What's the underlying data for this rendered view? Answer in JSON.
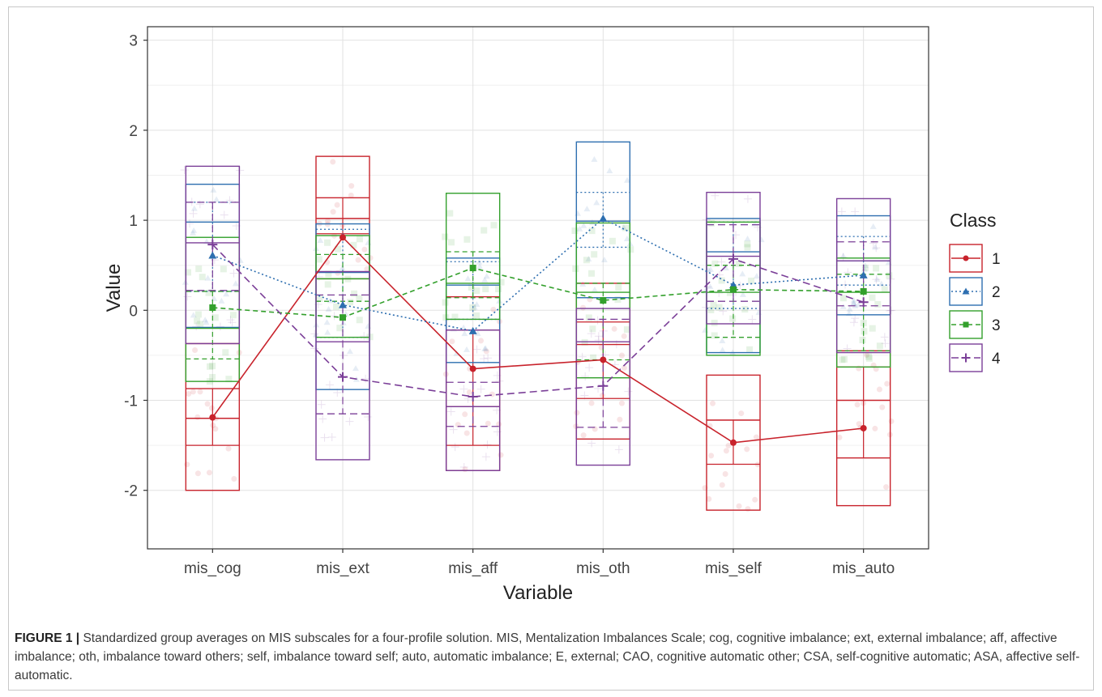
{
  "chart_data": {
    "type": "line",
    "title": "",
    "xlabel": "Variable",
    "ylabel": "Value",
    "categories": [
      "mis_cog",
      "mis_ext",
      "mis_aff",
      "mis_oth",
      "mis_self",
      "mis_auto"
    ],
    "ylim": [
      -2.65,
      3.15
    ],
    "y_ticks": [
      -2,
      -1,
      0,
      1,
      2,
      3
    ],
    "grid": true,
    "legend_title": "Class",
    "legend_position": "right",
    "series": [
      {
        "name": "1",
        "color": "#c8232c",
        "marker": "circle",
        "line_style": "solid",
        "values": [
          -1.19,
          0.81,
          -0.65,
          -0.55,
          -1.47,
          -1.31
        ],
        "box": [
          [
            -2.0,
            -1.5,
            -1.2,
            -0.87,
            -0.37
          ],
          [
            0.35,
            0.85,
            1.02,
            1.25,
            1.71
          ],
          [
            -1.78,
            -1.5,
            -1.07,
            -0.22,
            0.15
          ],
          [
            -1.43,
            -0.98,
            -0.38,
            -0.13,
            0.3
          ],
          [
            -2.22,
            -1.71,
            -1.22,
            -1.22,
            -0.72
          ],
          [
            -2.17,
            -1.64,
            -1.0,
            -0.63,
            -0.45
          ]
        ]
      },
      {
        "name": "2",
        "color": "#2e6fb0",
        "marker": "triangle",
        "line_style": "dotted",
        "values": [
          0.61,
          0.06,
          -0.23,
          1.02,
          0.28,
          0.39
        ],
        "box": [
          [
            -0.19,
            0.21,
            0.98,
            1.2,
            1.4
          ],
          [
            -0.88,
            -0.3,
            0.42,
            0.9,
            0.96
          ],
          [
            -0.58,
            -0.1,
            0.28,
            0.54,
            0.58
          ],
          [
            0.14,
            0.7,
            0.99,
            1.31,
            1.87
          ],
          [
            -0.47,
            0.02,
            0.65,
            0.98,
            1.02
          ],
          [
            -0.05,
            0.28,
            0.55,
            0.82,
            1.05
          ]
        ]
      },
      {
        "name": "3",
        "color": "#33a02c",
        "marker": "square",
        "line_style": "dashed",
        "values": [
          0.03,
          -0.08,
          0.47,
          0.11,
          0.23,
          0.21
        ],
        "box": [
          [
            -0.79,
            -0.54,
            -0.2,
            0.21,
            0.81
          ],
          [
            -0.3,
            0.1,
            0.35,
            0.62,
            0.83
          ],
          [
            -0.1,
            0.14,
            0.3,
            0.65,
            1.3
          ],
          [
            -0.75,
            -0.55,
            0.2,
            0.3,
            0.97
          ],
          [
            -0.5,
            -0.3,
            0.2,
            0.5,
            0.98
          ],
          [
            -0.63,
            -0.45,
            0.2,
            0.4,
            0.58
          ]
        ]
      },
      {
        "name": "4",
        "color": "#7b3f98",
        "marker": "plus",
        "line_style": "longdash",
        "values": [
          0.73,
          -0.74,
          -0.96,
          -0.84,
          0.57,
          0.09
        ],
        "box": [
          [
            -0.37,
            0.22,
            0.75,
            1.2,
            1.6
          ],
          [
            -1.66,
            -1.15,
            -0.35,
            0.17,
            0.43
          ],
          [
            -1.78,
            -1.29,
            -1.07,
            -0.8,
            -0.22
          ],
          [
            -1.72,
            -1.3,
            -0.35,
            -0.1,
            0.02
          ],
          [
            -0.15,
            0.1,
            0.6,
            0.95,
            1.31
          ],
          [
            -0.47,
            0.05,
            0.55,
            0.76,
            1.24
          ]
        ]
      }
    ]
  },
  "caption": {
    "label": "FIGURE 1 |",
    "text": " Standardized group averages on MIS subscales for a four-profile solution. MIS, Mentalization Imbalances Scale; cog, cognitive imbalance; ext, external imbalance; aff, affective imbalance; oth, imbalance toward others; self, imbalance toward self; auto, automatic imbalance; E, external; CAO, cognitive automatic other; CSA, self-cognitive automatic; ASA, affective self-automatic."
  }
}
